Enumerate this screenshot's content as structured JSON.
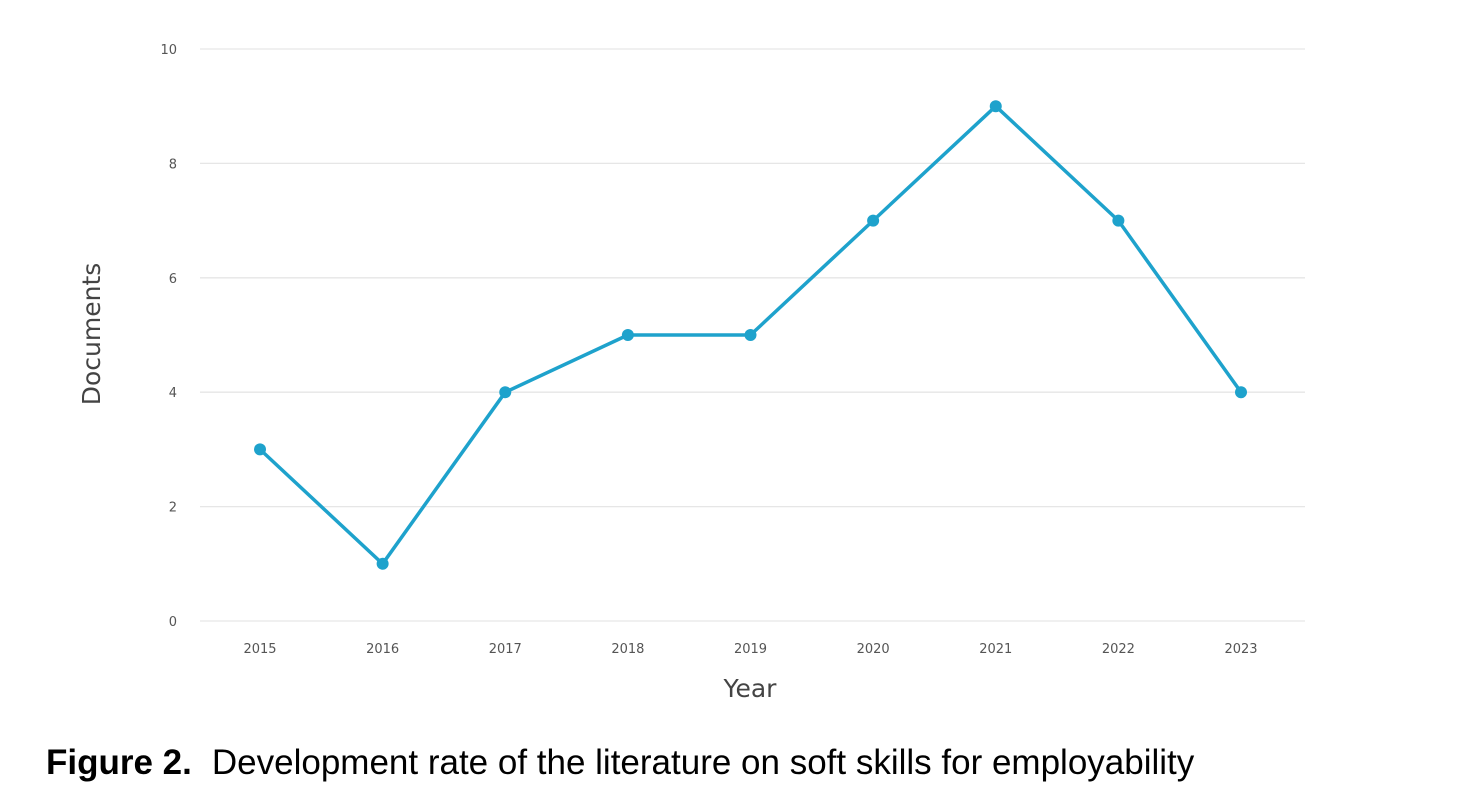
{
  "caption": {
    "label": "Figure 2.",
    "text": "Development rate of the literature on soft skills for employability"
  },
  "chart_data": {
    "type": "line",
    "title": "",
    "xlabel": "Year",
    "ylabel": "Documents",
    "categories": [
      "2015",
      "2016",
      "2017",
      "2018",
      "2019",
      "2020",
      "2021",
      "2022",
      "2023"
    ],
    "series": [
      {
        "values": [
          3,
          1,
          4,
          5,
          5,
          7,
          9,
          7,
          4
        ],
        "color": "#1ea2cc"
      }
    ],
    "ylim": [
      0,
      10
    ],
    "yticks": [
      0,
      2,
      4,
      6,
      8,
      10
    ],
    "grid": "horizontal",
    "legend": "none"
  }
}
